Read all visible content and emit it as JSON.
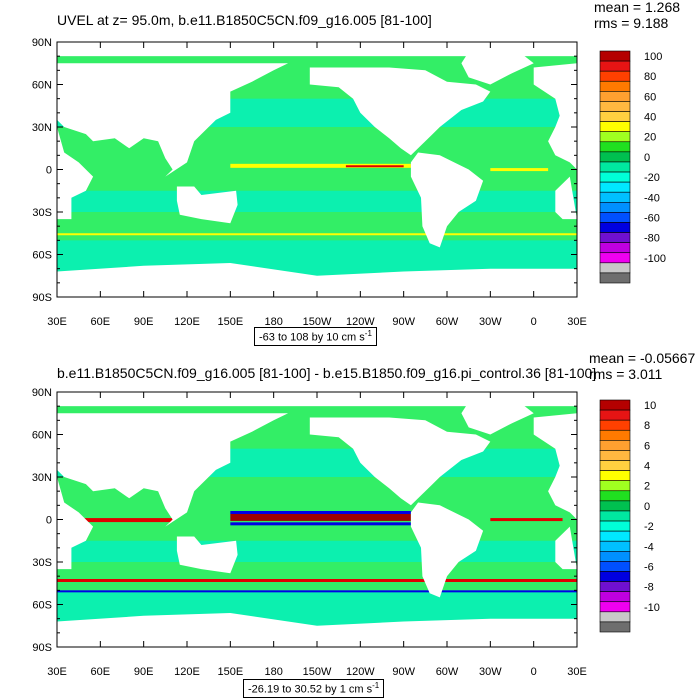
{
  "panels": [
    {
      "title": "UVEL at z=  95.0m, b.e11.B1850C5CN.f09_g16.005 [81-100]",
      "mean": "mean = 1.268",
      "rms": "rms = 9.188",
      "range": "-63 to 108 by 10 cm s",
      "range_sup": "-1",
      "colorbar_labels": [
        "100",
        "80",
        "60",
        "40",
        "20",
        "0",
        "-20",
        "-40",
        "-60",
        "-80",
        "-100"
      ]
    },
    {
      "title": "b.e11.B1850C5CN.f09_g16.005 [81-100] - b.e15.B1850.f09_g16.pi_control.36 [81-100]",
      "mean": "mean = -0.05667",
      "rms": "rms = 3.011",
      "range": "-26.19 to 30.52 by 1 cm s",
      "range_sup": "-1",
      "colorbar_labels": [
        "10",
        "8",
        "6",
        "4",
        "2",
        "0",
        "-2",
        "-4",
        "-6",
        "-8",
        "-10"
      ]
    }
  ],
  "lat_labels": [
    "90N",
    "60N",
    "30N",
    "0",
    "30S",
    "60S",
    "90S"
  ],
  "lon_labels": [
    "30E",
    "60E",
    "90E",
    "120E",
    "150E",
    "180",
    "150W",
    "120W",
    "90W",
    "60W",
    "30W",
    "0",
    "30E"
  ],
  "colorbar_colors": [
    "#b40000",
    "#e61414",
    "#ff4000",
    "#ff7a00",
    "#ffa030",
    "#ffb840",
    "#ffd040",
    "#ffff00",
    "#a0ff20",
    "#20e020",
    "#00c050",
    "#00e8a0",
    "#00ffd8",
    "#00e8ff",
    "#00c0ff",
    "#0090ff",
    "#0050ff",
    "#0000e0",
    "#7010d0",
    "#c000e0",
    "#f000f0",
    "#c8c8c8",
    "#6e6e6e"
  ],
  "ocean_colors": {
    "base": "#33ee66",
    "cyan": "#00f0c8",
    "yellow": "#ffff00",
    "red": "#e00000",
    "blue": "#0000e6",
    "darkred": "#a00000"
  }
}
